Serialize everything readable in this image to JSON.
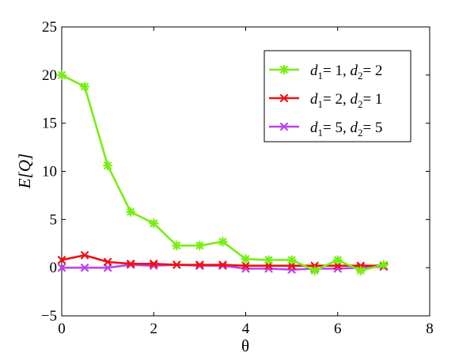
{
  "chart_data": {
    "type": "line",
    "title": "",
    "xlabel": "θ",
    "ylabel": "E[Q]",
    "xlim": [
      0,
      8
    ],
    "ylim": [
      -5,
      25
    ],
    "xticks": [
      0,
      2,
      4,
      6,
      8
    ],
    "yticks": [
      -5,
      0,
      5,
      10,
      15,
      20,
      25
    ],
    "grid": false,
    "legend_position": "top-right",
    "x": [
      0,
      0.5,
      1,
      1.5,
      2,
      2.5,
      3,
      3.5,
      4,
      4.5,
      5,
      5.5,
      6,
      6.5,
      7
    ],
    "series": [
      {
        "name": "d1= 1, d2= 2",
        "legend": {
          "d_a": "d",
          "sub_a": "1",
          "eq_a": "= 1, ",
          "d_b": "d",
          "sub_b": "2",
          "eq_b": "= 2"
        },
        "color": "#77ee11",
        "marker": "asterisk",
        "values": [
          20.0,
          18.8,
          10.6,
          5.8,
          4.6,
          2.3,
          2.3,
          2.7,
          0.9,
          0.8,
          0.8,
          -0.3,
          0.8,
          -0.3,
          0.3
        ]
      },
      {
        "name": "d1= 2, d2= 1",
        "legend": {
          "d_a": "d",
          "sub_a": "1",
          "eq_a": "= 2, ",
          "d_b": "d",
          "sub_b": "2",
          "eq_b": "= 1"
        },
        "color": "#ee1111",
        "marker": "x",
        "values": [
          0.8,
          1.3,
          0.6,
          0.4,
          0.4,
          0.3,
          0.3,
          0.3,
          0.2,
          0.2,
          0.2,
          0.2,
          0.2,
          0.2,
          0.2
        ]
      },
      {
        "name": "d1= 5, d2= 5",
        "legend": {
          "d_a": "d",
          "sub_a": "1",
          "eq_a": "= 5, ",
          "d_b": "d",
          "sub_b": "2",
          "eq_b": "= 5"
        },
        "color": "#bb44ee",
        "marker": "x",
        "values": [
          0.0,
          0.0,
          0.0,
          0.3,
          0.2,
          0.3,
          0.2,
          0.2,
          -0.1,
          -0.1,
          -0.2,
          -0.1,
          -0.1,
          0.0,
          0.1
        ]
      }
    ]
  }
}
